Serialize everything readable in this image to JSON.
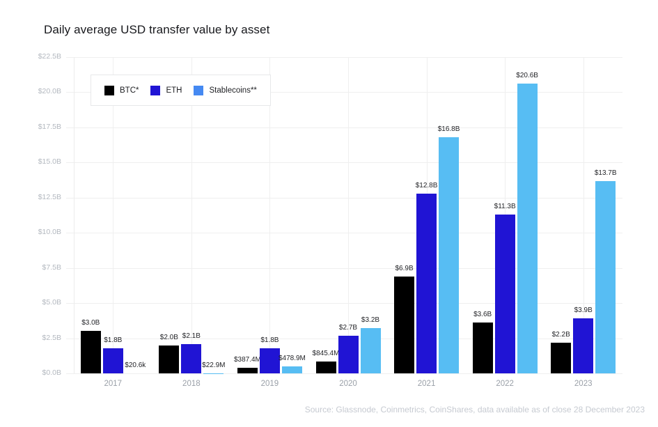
{
  "header": {
    "title": "Daily average USD transfer value by asset"
  },
  "legend": {
    "items": [
      {
        "label": "BTC*",
        "color": "#000000"
      },
      {
        "label": "ETH",
        "color": "#2014d4"
      },
      {
        "label": "Stablecoins**",
        "color": "#4589f2"
      }
    ]
  },
  "footer": {
    "source": "Source: Glassnode, Coinmetrics, CoinShares, data available as of close 28 December 2023"
  },
  "colors": {
    "grid": "#efefef",
    "axis_border": "#ececec",
    "y_tick_label": "#b3b8bf",
    "x_tick_label": "#9aa0a8",
    "value_label": "#232428",
    "title": "#17181c",
    "source": "#c6cad1"
  },
  "chart_data": {
    "type": "bar",
    "title": "Daily average USD transfer value by asset",
    "unit": "USD billions per day",
    "categories": [
      "2017",
      "2018",
      "2019",
      "2020",
      "2021",
      "2022",
      "2023"
    ],
    "series": [
      {
        "name": "BTC*",
        "color": "#000000",
        "values": [
          3.0,
          2.0,
          0.3874,
          0.8454,
          6.9,
          3.6,
          2.2
        ],
        "value_labels": [
          "$3.0B",
          "$2.0B",
          "$387.4M",
          "$845.4M",
          "$6.9B",
          "$3.6B",
          "$2.2B"
        ]
      },
      {
        "name": "ETH",
        "color": "#2014d4",
        "values": [
          1.8,
          2.1,
          1.8,
          2.7,
          12.8,
          11.3,
          3.9
        ],
        "value_labels": [
          "$1.8B",
          "$2.1B",
          "$1.8B",
          "$2.7B",
          "$12.8B",
          "$11.3B",
          "$3.9B"
        ]
      },
      {
        "name": "Stablecoins**",
        "color": "#57bdf3",
        "values": [
          2.06e-05,
          0.0229,
          0.4789,
          3.2,
          16.8,
          20.6,
          13.7
        ],
        "value_labels": [
          "$20.6k",
          "$22.9M",
          "$478.9M",
          "$3.2B",
          "$16.8B",
          "$20.6B",
          "$13.7B"
        ]
      }
    ],
    "xlabel": "",
    "ylabel": "",
    "ylim": [
      0,
      22.5
    ],
    "ytick_step": 2.5,
    "ytick_labels": [
      "$0.0B",
      "$2.5B",
      "$5.0B",
      "$7.5B",
      "$10.0B",
      "$12.5B",
      "$15.0B",
      "$17.5B",
      "$20.0B",
      "$22.5B"
    ],
    "grid": true,
    "legend_position": "top-left"
  }
}
